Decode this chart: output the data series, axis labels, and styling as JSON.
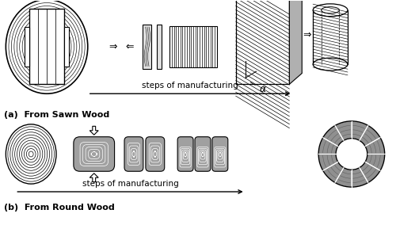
{
  "background_color": "#ffffff",
  "line_color": "#000000",
  "gray_fill": "#999999",
  "label_a": "(a)  From Sawn Wood",
  "label_b": "(b)  From Round Wood",
  "steps_text": "steps of manufacturing",
  "alpha_label": "α"
}
